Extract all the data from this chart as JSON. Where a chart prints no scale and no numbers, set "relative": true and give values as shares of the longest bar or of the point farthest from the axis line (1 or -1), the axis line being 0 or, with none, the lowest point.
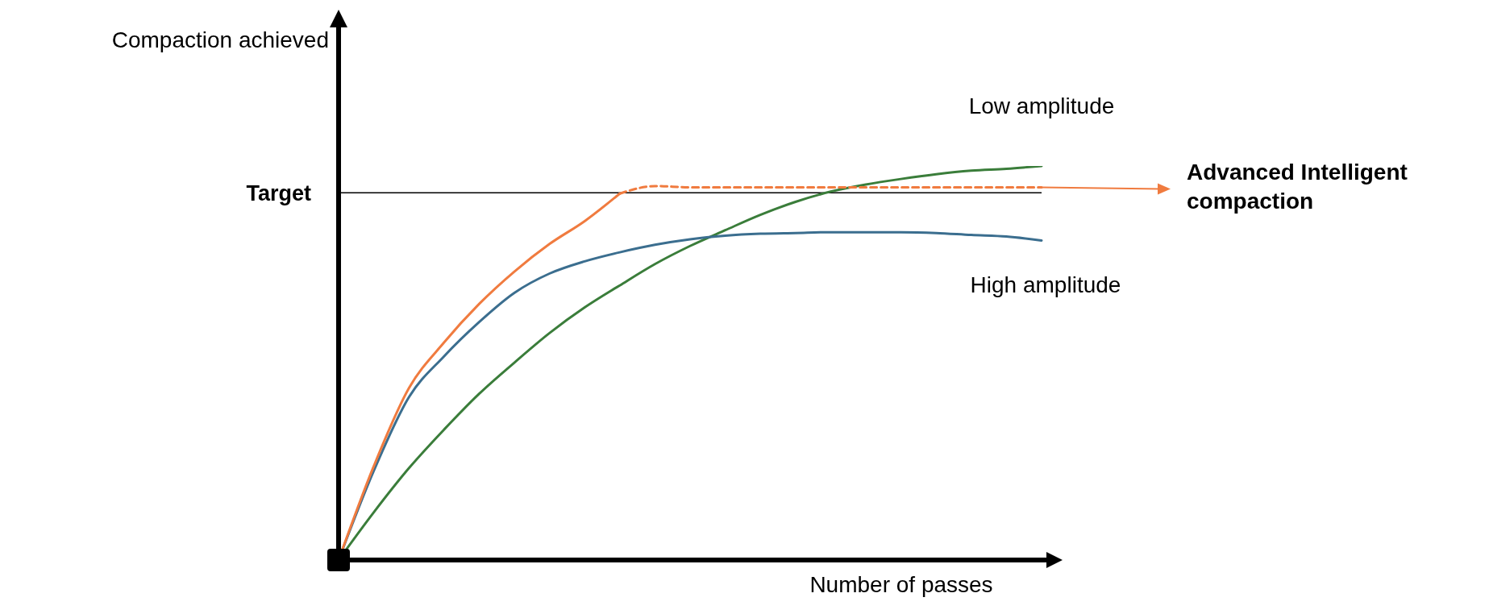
{
  "chart_data": {
    "type": "line",
    "relative": true,
    "marker": "none",
    "xlabel": "Number of passes",
    "annotations": [
      "Compaction achieved"
    ],
    "categories": [
      null,
      null,
      null,
      null,
      null,
      null,
      null,
      null,
      null,
      null,
      null,
      null,
      null,
      null,
      null,
      null,
      null,
      null,
      null,
      null,
      null
    ],
    "ref_lines": [
      {
        "axis": "y",
        "value": 0.932,
        "label": "Target",
        "color": "#000000"
      }
    ],
    "series": [
      {
        "name": "Low amplitude",
        "color": "#3a7d3a",
        "values": [
          0,
          0.121,
          0.233,
          0.331,
          0.422,
          0.501,
          0.576,
          0.641,
          0.697,
          0.751,
          0.797,
          0.837,
          0.876,
          0.909,
          0.935,
          0.953,
          0.967,
          0.979,
          0.988,
          0.993,
          1
        ]
      },
      {
        "name": "High amplitude",
        "color": "#3b6e8f",
        "values": [
          0,
          0.226,
          0.413,
          0.517,
          0.604,
          0.678,
          0.727,
          0.758,
          0.781,
          0.8,
          0.814,
          0.823,
          0.828,
          0.83,
          0.832,
          0.832,
          0.832,
          0.83,
          0.825,
          0.821,
          0.811
        ]
      },
      {
        "color": "#f07b3f",
        "values": [
          0,
          0.238,
          0.436,
          0.552,
          0.65,
          0.732,
          0.802,
          0.86,
          0.93,
          null,
          null,
          null,
          null,
          null,
          null,
          null,
          null,
          null,
          null,
          null,
          null
        ]
      },
      {
        "name": "Advanced Intelligent compaction",
        "color": "#f07b3f",
        "line_style": "dashed",
        "values": [
          null,
          null,
          null,
          null,
          null,
          null,
          null,
          null,
          0.93,
          0.949,
          0.946,
          0.946,
          0.946,
          0.946,
          0.946,
          0.946,
          0.946,
          0.946,
          0.946,
          0.946,
          0.946
        ]
      }
    ]
  }
}
